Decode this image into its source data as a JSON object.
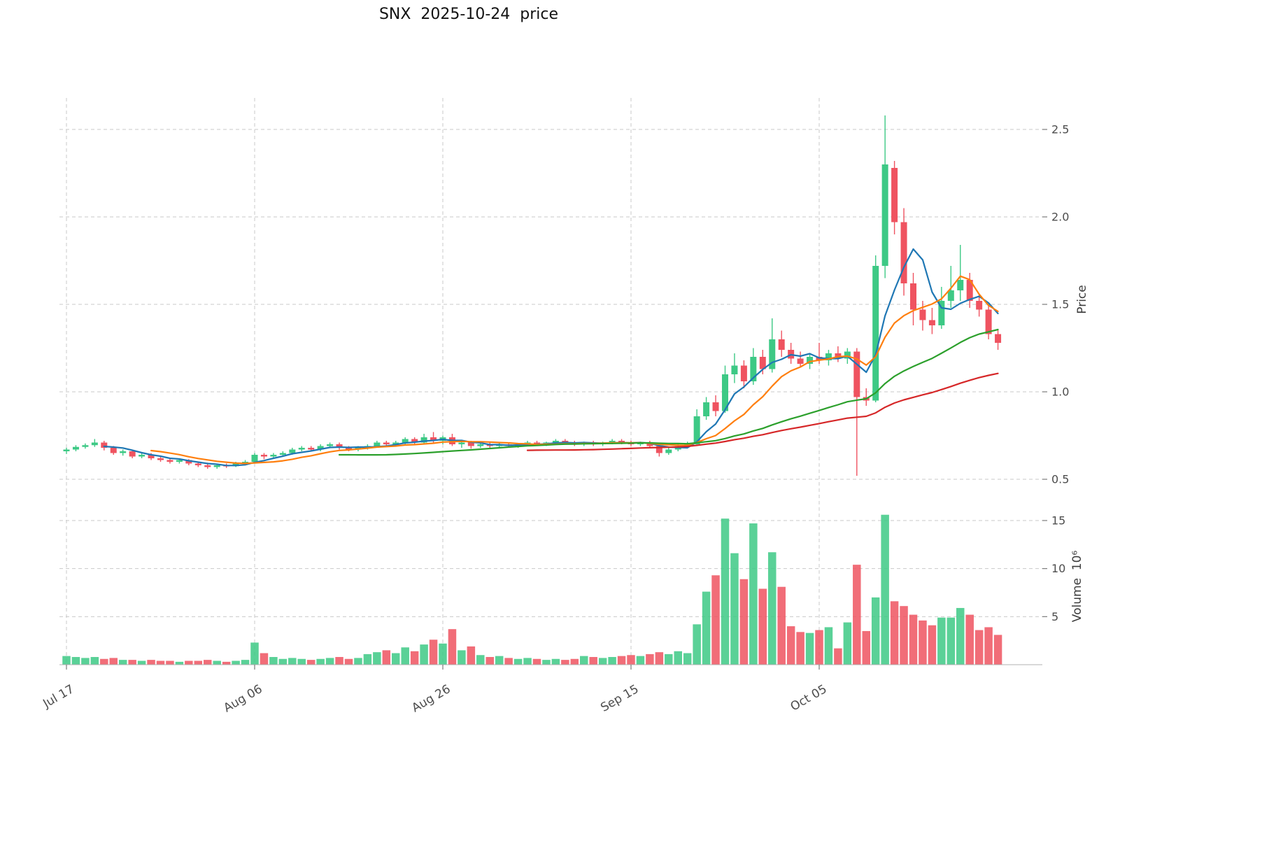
{
  "title": "SNX  2025-10-24  price",
  "chart_data": {
    "type": "candlestick+volume",
    "title": "SNX  2025-10-24  price",
    "grid": true,
    "price_axis": {
      "label": "Price",
      "ticks": [
        0.5,
        1.0,
        1.5,
        2.0,
        2.5
      ],
      "range": [
        0.48,
        2.68
      ],
      "side": "right"
    },
    "volume_axis": {
      "label": "Volume  10⁶",
      "ticks": [
        5,
        10,
        15
      ],
      "range": [
        0,
        18.2
      ],
      "side": "right",
      "unit": "10⁶"
    },
    "x_ticks": [
      {
        "index": 0,
        "label": "Jul 17"
      },
      {
        "index": 20,
        "label": "Aug 06"
      },
      {
        "index": 40,
        "label": "Aug 26"
      },
      {
        "index": 60,
        "label": "Sep 15"
      },
      {
        "index": 80,
        "label": "Oct 05"
      }
    ],
    "colors": {
      "up": "#3dc985",
      "down": "#ef5360",
      "grid": "#c9c9c9",
      "tick_text": "#4d4d4d",
      "axis": "#b0b0b0"
    },
    "moving_averages": [
      {
        "window": 5,
        "color": "#1f77b4"
      },
      {
        "window": 10,
        "color": "#ff7f0e"
      },
      {
        "window": 30,
        "color": "#2ca02c"
      },
      {
        "window": 50,
        "color": "#d62728"
      }
    ],
    "candles_ohlc": [
      [
        0.66,
        0.68,
        0.645,
        0.67
      ],
      [
        0.67,
        0.695,
        0.66,
        0.685
      ],
      [
        0.685,
        0.705,
        0.675,
        0.695
      ],
      [
        0.695,
        0.73,
        0.685,
        0.71
      ],
      [
        0.71,
        0.72,
        0.665,
        0.68
      ],
      [
        0.68,
        0.69,
        0.64,
        0.65
      ],
      [
        0.65,
        0.67,
        0.635,
        0.66
      ],
      [
        0.66,
        0.665,
        0.62,
        0.63
      ],
      [
        0.63,
        0.65,
        0.62,
        0.64
      ],
      [
        0.64,
        0.65,
        0.61,
        0.62
      ],
      [
        0.62,
        0.63,
        0.6,
        0.61
      ],
      [
        0.61,
        0.62,
        0.59,
        0.6
      ],
      [
        0.6,
        0.62,
        0.59,
        0.61
      ],
      [
        0.61,
        0.615,
        0.58,
        0.59
      ],
      [
        0.59,
        0.6,
        0.57,
        0.58
      ],
      [
        0.58,
        0.595,
        0.56,
        0.57
      ],
      [
        0.57,
        0.59,
        0.56,
        0.58
      ],
      [
        0.58,
        0.59,
        0.565,
        0.575
      ],
      [
        0.575,
        0.6,
        0.57,
        0.59
      ],
      [
        0.59,
        0.61,
        0.58,
        0.6
      ],
      [
        0.6,
        0.65,
        0.595,
        0.64
      ],
      [
        0.64,
        0.65,
        0.615,
        0.63
      ],
      [
        0.63,
        0.65,
        0.62,
        0.64
      ],
      [
        0.64,
        0.66,
        0.63,
        0.65
      ],
      [
        0.65,
        0.68,
        0.64,
        0.67
      ],
      [
        0.67,
        0.69,
        0.66,
        0.68
      ],
      [
        0.68,
        0.69,
        0.66,
        0.67
      ],
      [
        0.67,
        0.7,
        0.66,
        0.69
      ],
      [
        0.69,
        0.71,
        0.68,
        0.7
      ],
      [
        0.7,
        0.71,
        0.67,
        0.68
      ],
      [
        0.68,
        0.69,
        0.66,
        0.67
      ],
      [
        0.67,
        0.69,
        0.66,
        0.68
      ],
      [
        0.68,
        0.7,
        0.67,
        0.69
      ],
      [
        0.69,
        0.72,
        0.68,
        0.71
      ],
      [
        0.71,
        0.72,
        0.69,
        0.7
      ],
      [
        0.7,
        0.72,
        0.69,
        0.71
      ],
      [
        0.71,
        0.74,
        0.7,
        0.73
      ],
      [
        0.73,
        0.74,
        0.7,
        0.71
      ],
      [
        0.71,
        0.76,
        0.7,
        0.74
      ],
      [
        0.74,
        0.77,
        0.71,
        0.72
      ],
      [
        0.72,
        0.75,
        0.7,
        0.74
      ],
      [
        0.74,
        0.76,
        0.69,
        0.7
      ],
      [
        0.7,
        0.72,
        0.68,
        0.71
      ],
      [
        0.71,
        0.72,
        0.675,
        0.69
      ],
      [
        0.69,
        0.71,
        0.68,
        0.7
      ],
      [
        0.7,
        0.71,
        0.68,
        0.69
      ],
      [
        0.69,
        0.71,
        0.68,
        0.7
      ],
      [
        0.7,
        0.71,
        0.68,
        0.69
      ],
      [
        0.69,
        0.705,
        0.68,
        0.7
      ],
      [
        0.7,
        0.72,
        0.69,
        0.71
      ],
      [
        0.71,
        0.72,
        0.69,
        0.7
      ],
      [
        0.7,
        0.715,
        0.69,
        0.71
      ],
      [
        0.71,
        0.73,
        0.7,
        0.72
      ],
      [
        0.72,
        0.73,
        0.7,
        0.71
      ],
      [
        0.71,
        0.72,
        0.69,
        0.7
      ],
      [
        0.7,
        0.715,
        0.69,
        0.71
      ],
      [
        0.71,
        0.72,
        0.69,
        0.7
      ],
      [
        0.7,
        0.715,
        0.69,
        0.71
      ],
      [
        0.71,
        0.73,
        0.7,
        0.72
      ],
      [
        0.72,
        0.73,
        0.7,
        0.71
      ],
      [
        0.71,
        0.72,
        0.69,
        0.7
      ],
      [
        0.7,
        0.715,
        0.69,
        0.71
      ],
      [
        0.71,
        0.72,
        0.68,
        0.69
      ],
      [
        0.69,
        0.7,
        0.63,
        0.65
      ],
      [
        0.65,
        0.68,
        0.64,
        0.67
      ],
      [
        0.67,
        0.7,
        0.66,
        0.69
      ],
      [
        0.69,
        0.715,
        0.68,
        0.7
      ],
      [
        0.7,
        0.9,
        0.69,
        0.86
      ],
      [
        0.86,
        0.97,
        0.84,
        0.94
      ],
      [
        0.94,
        0.98,
        0.86,
        0.89
      ],
      [
        0.89,
        1.15,
        0.88,
        1.1
      ],
      [
        1.1,
        1.22,
        1.05,
        1.15
      ],
      [
        1.15,
        1.18,
        1.02,
        1.06
      ],
      [
        1.06,
        1.25,
        1.04,
        1.2
      ],
      [
        1.2,
        1.24,
        1.1,
        1.13
      ],
      [
        1.13,
        1.42,
        1.11,
        1.3
      ],
      [
        1.3,
        1.35,
        1.2,
        1.24
      ],
      [
        1.24,
        1.28,
        1.16,
        1.19
      ],
      [
        1.19,
        1.23,
        1.14,
        1.16
      ],
      [
        1.16,
        1.22,
        1.13,
        1.2
      ],
      [
        1.2,
        1.28,
        1.16,
        1.18
      ],
      [
        1.18,
        1.24,
        1.15,
        1.22
      ],
      [
        1.22,
        1.26,
        1.17,
        1.19
      ],
      [
        1.19,
        1.25,
        1.16,
        1.23
      ],
      [
        1.23,
        1.25,
        0.52,
        0.97
      ],
      [
        0.97,
        1.02,
        0.92,
        0.95
      ],
      [
        0.95,
        1.78,
        0.94,
        1.72
      ],
      [
        1.72,
        2.58,
        1.65,
        2.3
      ],
      [
        2.28,
        2.32,
        1.9,
        1.97
      ],
      [
        1.97,
        2.05,
        1.55,
        1.62
      ],
      [
        1.62,
        1.68,
        1.38,
        1.47
      ],
      [
        1.47,
        1.52,
        1.35,
        1.41
      ],
      [
        1.41,
        1.48,
        1.33,
        1.38
      ],
      [
        1.38,
        1.6,
        1.36,
        1.52
      ],
      [
        1.52,
        1.72,
        1.48,
        1.58
      ],
      [
        1.58,
        1.84,
        1.52,
        1.64
      ],
      [
        1.64,
        1.68,
        1.48,
        1.52
      ],
      [
        1.52,
        1.56,
        1.43,
        1.47
      ],
      [
        1.47,
        1.5,
        1.3,
        1.33
      ],
      [
        1.33,
        1.36,
        1.24,
        1.28
      ]
    ],
    "volumes_millions": [
      0.9,
      0.8,
      0.7,
      0.8,
      0.6,
      0.7,
      0.5,
      0.5,
      0.4,
      0.5,
      0.4,
      0.4,
      0.3,
      0.4,
      0.4,
      0.5,
      0.4,
      0.3,
      0.4,
      0.5,
      2.3,
      1.2,
      0.8,
      0.6,
      0.7,
      0.6,
      0.5,
      0.6,
      0.7,
      0.8,
      0.6,
      0.7,
      1.1,
      1.3,
      1.5,
      1.2,
      1.8,
      1.4,
      2.1,
      2.6,
      2.2,
      3.7,
      1.5,
      1.9,
      1.0,
      0.8,
      0.9,
      0.7,
      0.6,
      0.7,
      0.6,
      0.5,
      0.6,
      0.5,
      0.6,
      0.9,
      0.8,
      0.7,
      0.8,
      0.9,
      1.0,
      0.9,
      1.1,
      1.3,
      1.1,
      1.4,
      1.2,
      4.2,
      7.6,
      9.3,
      15.2,
      11.6,
      8.9,
      14.7,
      7.9,
      11.7,
      8.1,
      4.0,
      3.4,
      3.3,
      3.6,
      3.9,
      1.7,
      4.4,
      10.4,
      3.5,
      7.0,
      15.6,
      6.6,
      6.1,
      5.2,
      4.6,
      4.1,
      4.9,
      4.9,
      5.9,
      5.2,
      3.6,
      3.9,
      3.1
    ]
  }
}
